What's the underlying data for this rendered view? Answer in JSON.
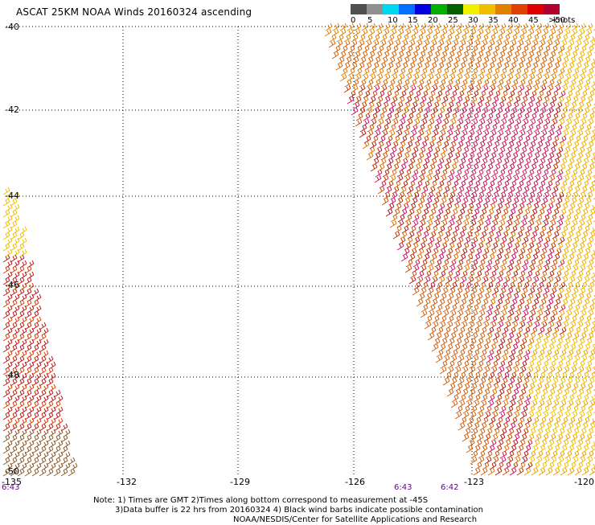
{
  "title": "ASCAT 25KM NOAA Winds 20160324 ascending",
  "legend": {
    "colors": [
      "#505050",
      "#909090",
      "#00d8f0",
      "#0070ff",
      "#0000e0",
      "#00b000",
      "#006000",
      "#f0f000",
      "#f0c000",
      "#e08000",
      "#e04000",
      "#e00000",
      "#b00030",
      "#8a5a2a",
      "#c0a070",
      "#e000e0",
      "#a000c0",
      "#400090"
    ],
    "labels": [
      "0",
      "5",
      "10",
      "15",
      "20",
      "25",
      "30",
      "35",
      "40",
      "45",
      ">50"
    ],
    "units": "knots"
  },
  "map": {
    "lat_ticks": [
      "-40",
      "-42",
      "-44",
      "-46",
      "-48",
      "-50"
    ],
    "lon_ticks": [
      "-135",
      "-132",
      "-129",
      "-126",
      "-123",
      "-120"
    ]
  },
  "pass_times": [
    "6:43",
    "6:43",
    "6:42"
  ],
  "note": {
    "line1": "Note: 1) Times are GMT 2)Times along bottom correspond to measurement at -45S",
    "line2": "3)Data buffer is 22 hrs from 20160324 4) Black wind barbs indicate possible contamination",
    "line3": "NOAA/NESDIS/Center for Satellite Applications and Research"
  }
}
